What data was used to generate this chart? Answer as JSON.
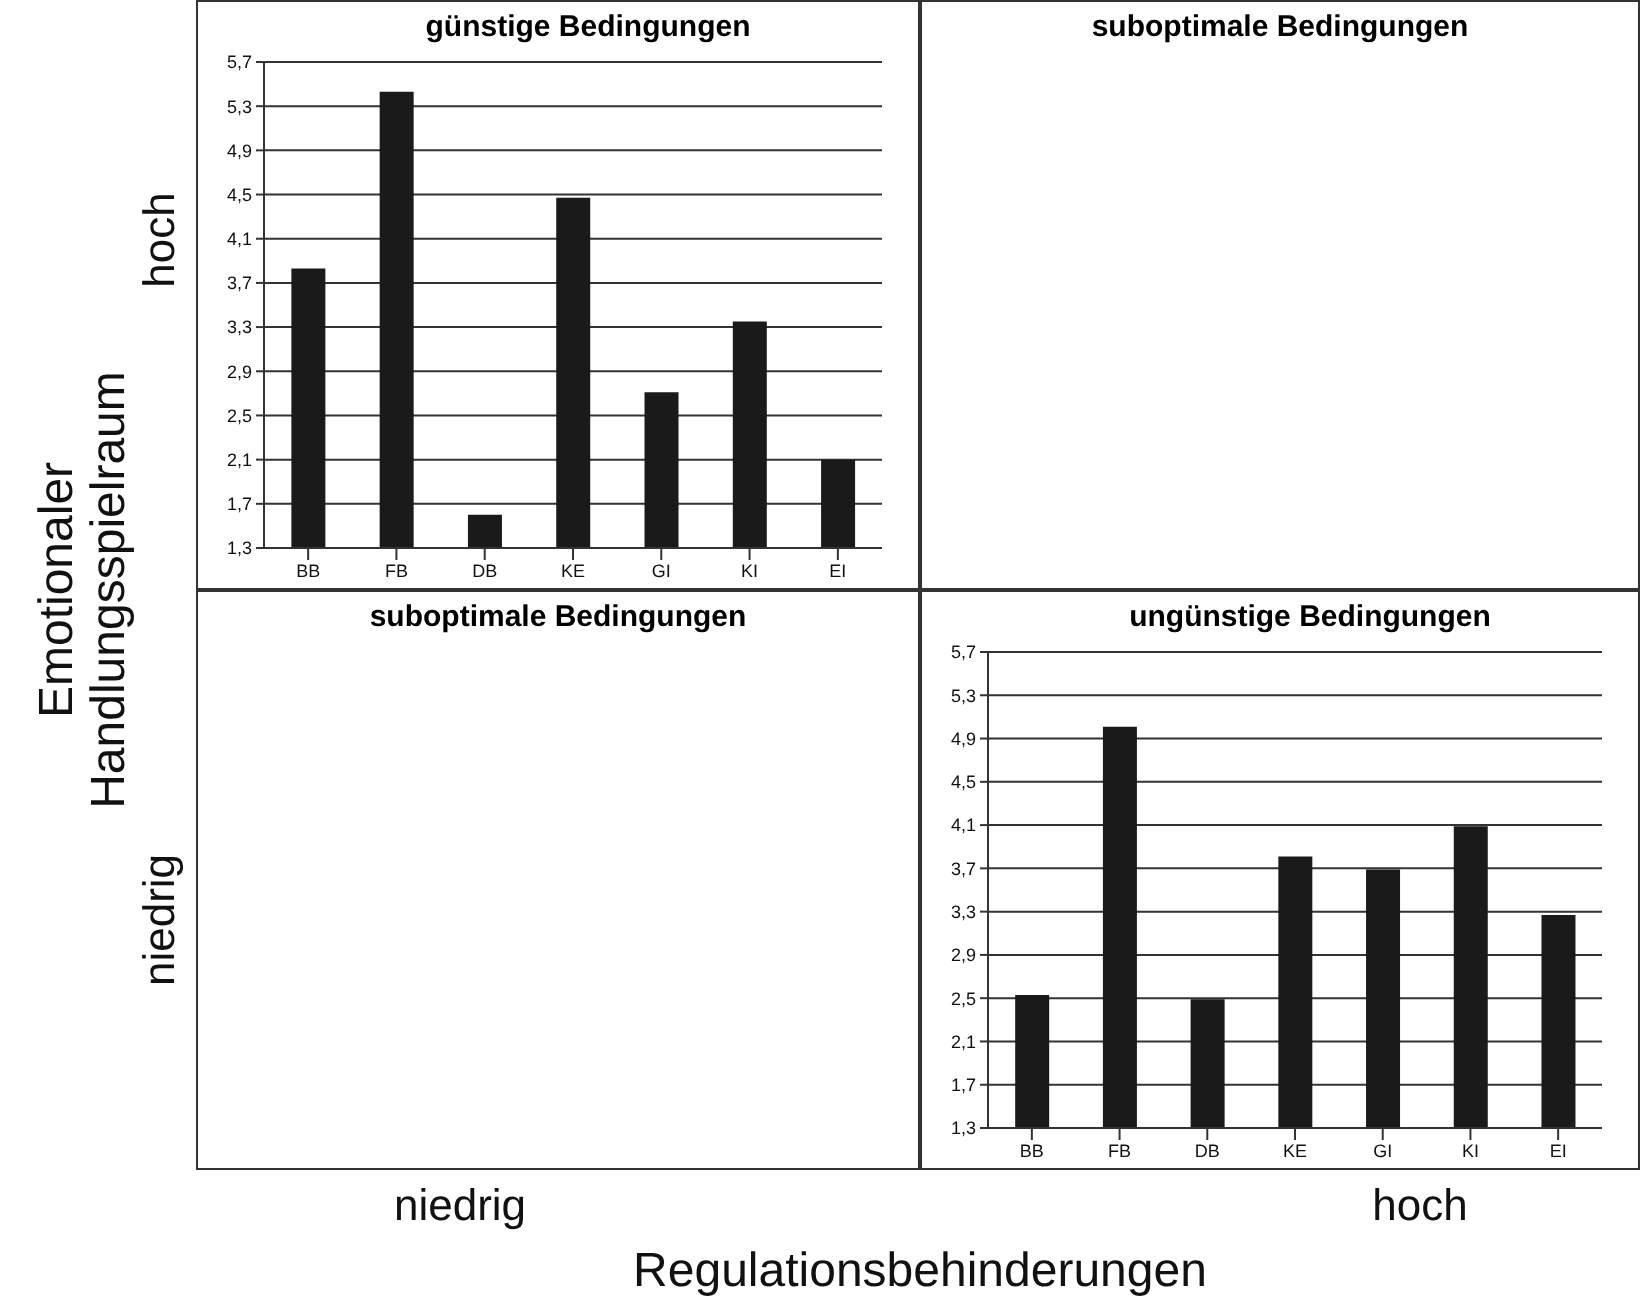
{
  "chart_data": [
    {
      "type": "bar",
      "title": "günstige Bedingungen",
      "categories": [
        "BB",
        "FB",
        "DB",
        "KE",
        "GI",
        "KI",
        "EI"
      ],
      "values": [
        3.83,
        5.43,
        1.6,
        4.47,
        2.71,
        3.35,
        2.1
      ],
      "color": "#1a1a1a",
      "ylim": [
        1.3,
        5.7
      ],
      "yticks": [
        {
          "value": 1.3,
          "label": "1,3"
        },
        {
          "value": 1.7,
          "label": "1,7"
        },
        {
          "value": 2.1,
          "label": "2,1"
        },
        {
          "value": 2.5,
          "label": "2,5"
        },
        {
          "value": 2.9,
          "label": "2,9"
        },
        {
          "value": 3.3,
          "label": "3,3"
        },
        {
          "value": 3.7,
          "label": "3,7"
        },
        {
          "value": 4.1,
          "label": "4,1"
        },
        {
          "value": 4.5,
          "label": "4,5"
        },
        {
          "value": 4.9,
          "label": "4,9"
        },
        {
          "value": 5.3,
          "label": "5,3"
        },
        {
          "value": 5.7,
          "label": "5,7"
        }
      ],
      "grid": "y"
    },
    {
      "type": "other",
      "title": "suboptimale Bedingungen"
    },
    {
      "type": "other",
      "title": "suboptimale Bedingungen"
    },
    {
      "type": "bar",
      "title": "ungünstige Bedingungen",
      "categories": [
        "BB",
        "FB",
        "DB",
        "KE",
        "GI",
        "KI",
        "EI"
      ],
      "values": [
        2.53,
        5.01,
        2.49,
        3.81,
        3.69,
        4.09,
        3.27
      ],
      "color": "#1a1a1a",
      "ylim": [
        1.3,
        5.7
      ],
      "yticks": [
        {
          "value": 1.3,
          "label": "1,3"
        },
        {
          "value": 1.7,
          "label": "1,7"
        },
        {
          "value": 2.1,
          "label": "2,1"
        },
        {
          "value": 2.5,
          "label": "2,5"
        },
        {
          "value": 2.9,
          "label": "2,9"
        },
        {
          "value": 3.3,
          "label": "3,3"
        },
        {
          "value": 3.7,
          "label": "3,7"
        },
        {
          "value": 4.1,
          "label": "4,1"
        },
        {
          "value": 4.5,
          "label": "4,5"
        },
        {
          "value": 4.9,
          "label": "4,9"
        },
        {
          "value": 5.3,
          "label": "5,3"
        },
        {
          "value": 5.7,
          "label": "5,7"
        }
      ],
      "grid": "y"
    },
    {
      "type": "other",
      "xlabel": "Regulationsbehinderungen",
      "ylabel": "Emotionaler Handlungsspielraum",
      "categories": [
        "niedrig",
        "hoch"
      ],
      "y_categories": [
        "hoch",
        "niedrig"
      ]
    }
  ]
}
